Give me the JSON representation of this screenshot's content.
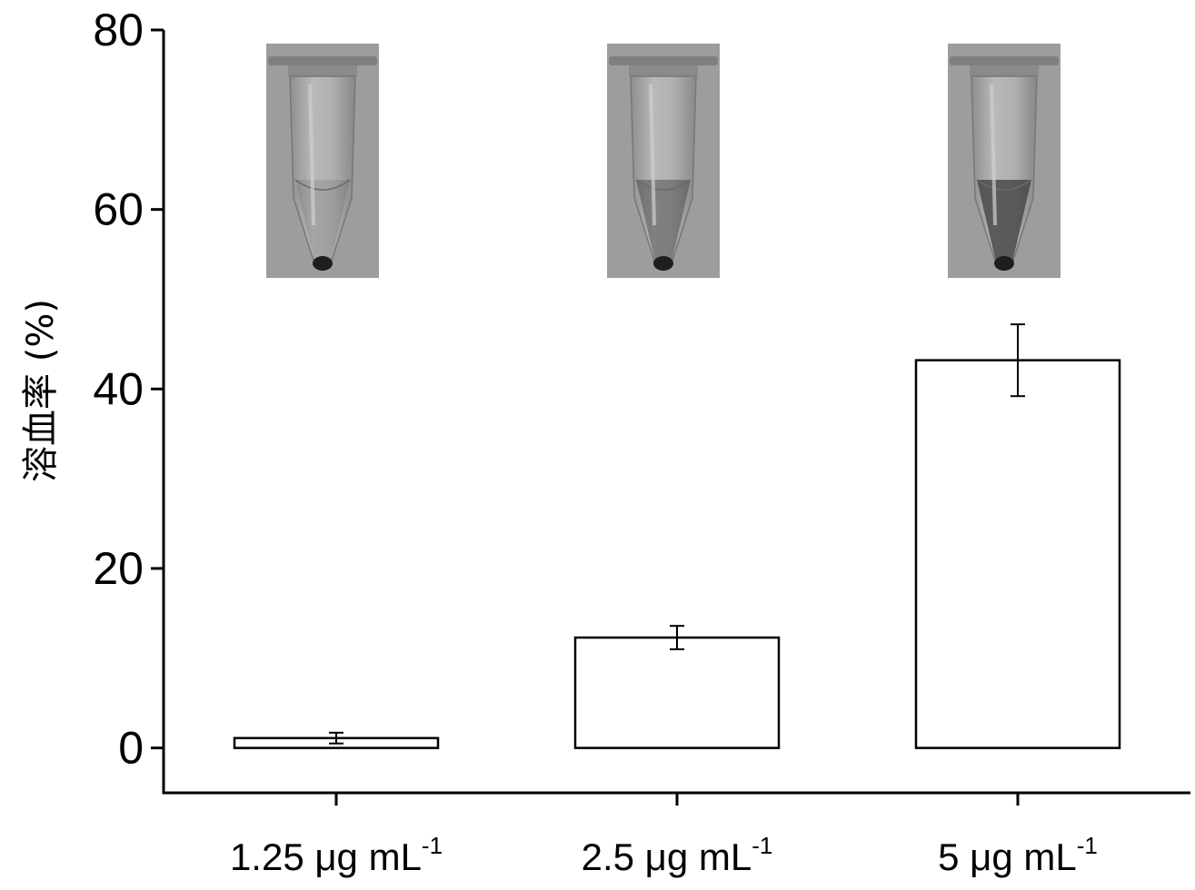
{
  "chart_data": {
    "type": "bar",
    "title": "",
    "xlabel": "",
    "ylabel": "溶血率 (%)",
    "ylim": [
      -5,
      80
    ],
    "yticks": [
      0,
      20,
      40,
      60,
      80
    ],
    "categories": [
      {
        "text": "1.25 μg mL",
        "sup": "-1"
      },
      {
        "text": "2.5 μg mL",
        "sup": "-1"
      },
      {
        "text": "5 μg mL",
        "sup": "-1"
      }
    ],
    "values": [
      1.1,
      12.3,
      43.2
    ],
    "errors": [
      0.6,
      1.3,
      4.0
    ],
    "bar_fill": "#ffffff",
    "bar_stroke": "#000000",
    "inset_images": [
      "test-tube-photo",
      "test-tube-photo",
      "test-tube-photo"
    ]
  }
}
